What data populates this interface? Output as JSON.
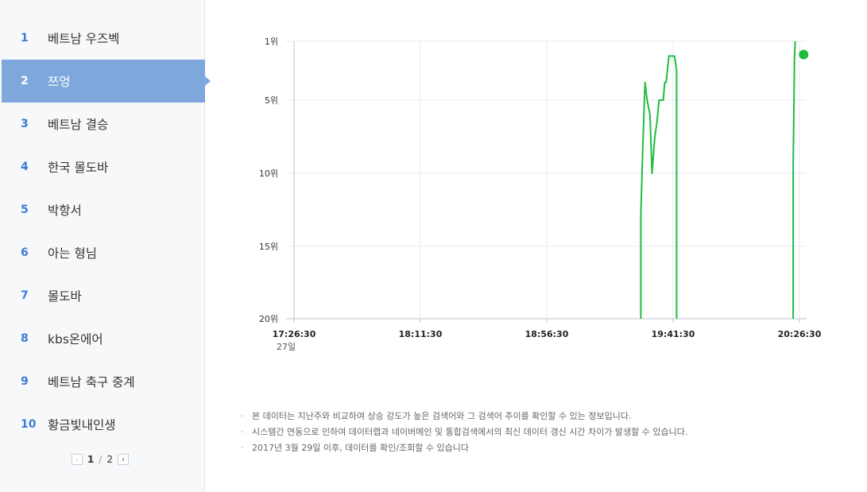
{
  "sidebar": {
    "items": [
      {
        "rank": "1",
        "keyword": "베트남 우즈벡"
      },
      {
        "rank": "2",
        "keyword": "쯔엉"
      },
      {
        "rank": "3",
        "keyword": "베트남 결승"
      },
      {
        "rank": "4",
        "keyword": "한국 몰도바"
      },
      {
        "rank": "5",
        "keyword": "박항서"
      },
      {
        "rank": "6",
        "keyword": "아는 형님"
      },
      {
        "rank": "7",
        "keyword": "몰도바"
      },
      {
        "rank": "8",
        "keyword": "kbs온에어"
      },
      {
        "rank": "9",
        "keyword": "베트남 축구 중계"
      },
      {
        "rank": "10",
        "keyword": "황금빛내인생"
      }
    ],
    "active_index": 1,
    "pager": {
      "current": "1",
      "separator": "/",
      "total": "2",
      "prev_icon": "chevron-left",
      "next_icon": "chevron-right"
    }
  },
  "chart_data": {
    "type": "line",
    "y_ticks": [
      "1위",
      "5위",
      "10위",
      "15위",
      "20위"
    ],
    "y_tick_values": [
      1,
      5,
      10,
      15,
      20
    ],
    "ylim": [
      1,
      20
    ],
    "y_inverted": true,
    "x_ticks": [
      "17:26:30",
      "18:11:30",
      "18:56:30",
      "19:41:30",
      "20:26:30"
    ],
    "x_sublabel": "27일",
    "grid": true,
    "line_color": "#1fbd3f",
    "series": [
      {
        "segments": [
          [
            [
              "19:30:00",
              20
            ],
            [
              "19:30:00",
              12.8
            ],
            [
              "19:30:45",
              8
            ],
            [
              "19:31:30",
              3.8
            ],
            [
              "19:32:15",
              5
            ],
            [
              "19:33:15",
              6
            ],
            [
              "19:34:00",
              10
            ],
            [
              "19:35:00",
              7.5
            ],
            [
              "19:35:45",
              6.5
            ],
            [
              "19:36:30",
              5
            ],
            [
              "19:38:00",
              5
            ],
            [
              "19:38:30",
              3.8
            ],
            [
              "19:39:00",
              3.8
            ],
            [
              "19:40:00",
              2
            ],
            [
              "19:42:00",
              2
            ],
            [
              "19:42:45",
              3
            ],
            [
              "19:42:45",
              20
            ]
          ],
          [
            [
              "20:24:15",
              20
            ],
            [
              "20:24:15",
              9.5
            ],
            [
              "20:24:45",
              2
            ],
            [
              "20:25:00",
              1
            ]
          ]
        ]
      }
    ],
    "current_marker": [
      "20:28:00",
      1.9
    ]
  },
  "notes": [
    "본 데이터는 지난주와 비교하여 상승 강도가 높은 검색어와 그 검색어 추이를 확인할 수 있는 정보입니다.",
    "시스템간 연동으로 인하여 데이터랩과 네이버메인 및 통합검색에서의 최신 데이터 갱신 시간 차이가 발생할 수 있습니다.",
    "2017년 3월 29일 이후, 데이터를 확인/조회할 수 있습니다"
  ]
}
